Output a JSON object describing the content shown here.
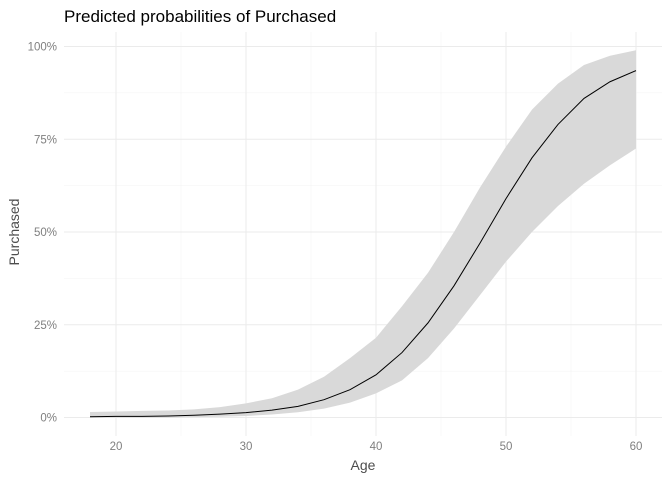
{
  "chart_data": {
    "type": "line",
    "title": "Predicted probabilities of Purchased",
    "xlabel": "Age",
    "ylabel": "Purchased",
    "xlim": [
      18,
      60
    ],
    "ylim": [
      0,
      1
    ],
    "x_ticks": [
      20,
      30,
      40,
      50,
      60
    ],
    "x_tick_labels": [
      "20",
      "30",
      "40",
      "50",
      "60"
    ],
    "y_ticks": [
      0,
      0.25,
      0.5,
      0.75,
      1.0
    ],
    "y_tick_labels": [
      "0%",
      "25%",
      "50%",
      "75%",
      "100%"
    ],
    "grid": true,
    "legend": "none",
    "colors": {
      "line": "#000000",
      "band": "#d9d9d9",
      "grid": "#ebebeb"
    },
    "series": [
      {
        "x": [
          18,
          20,
          22,
          24,
          26,
          28,
          30,
          32,
          34,
          36,
          38,
          40,
          42,
          44,
          46,
          48,
          50,
          52,
          54,
          56,
          58,
          60
        ],
        "y": [
          0.002,
          0.003,
          0.003,
          0.004,
          0.006,
          0.009,
          0.013,
          0.02,
          0.03,
          0.048,
          0.075,
          0.115,
          0.175,
          0.255,
          0.355,
          0.47,
          0.59,
          0.7,
          0.79,
          0.86,
          0.905,
          0.935
        ],
        "lower": [
          0.0,
          0.0,
          0.0,
          0.0,
          0.001,
          0.002,
          0.004,
          0.008,
          0.014,
          0.024,
          0.04,
          0.065,
          0.1,
          0.16,
          0.24,
          0.33,
          0.42,
          0.5,
          0.57,
          0.63,
          0.68,
          0.725
        ],
        "upper": [
          0.015,
          0.016,
          0.018,
          0.019,
          0.022,
          0.028,
          0.038,
          0.052,
          0.075,
          0.11,
          0.16,
          0.215,
          0.3,
          0.39,
          0.5,
          0.62,
          0.73,
          0.83,
          0.9,
          0.95,
          0.975,
          0.99
        ]
      }
    ]
  }
}
